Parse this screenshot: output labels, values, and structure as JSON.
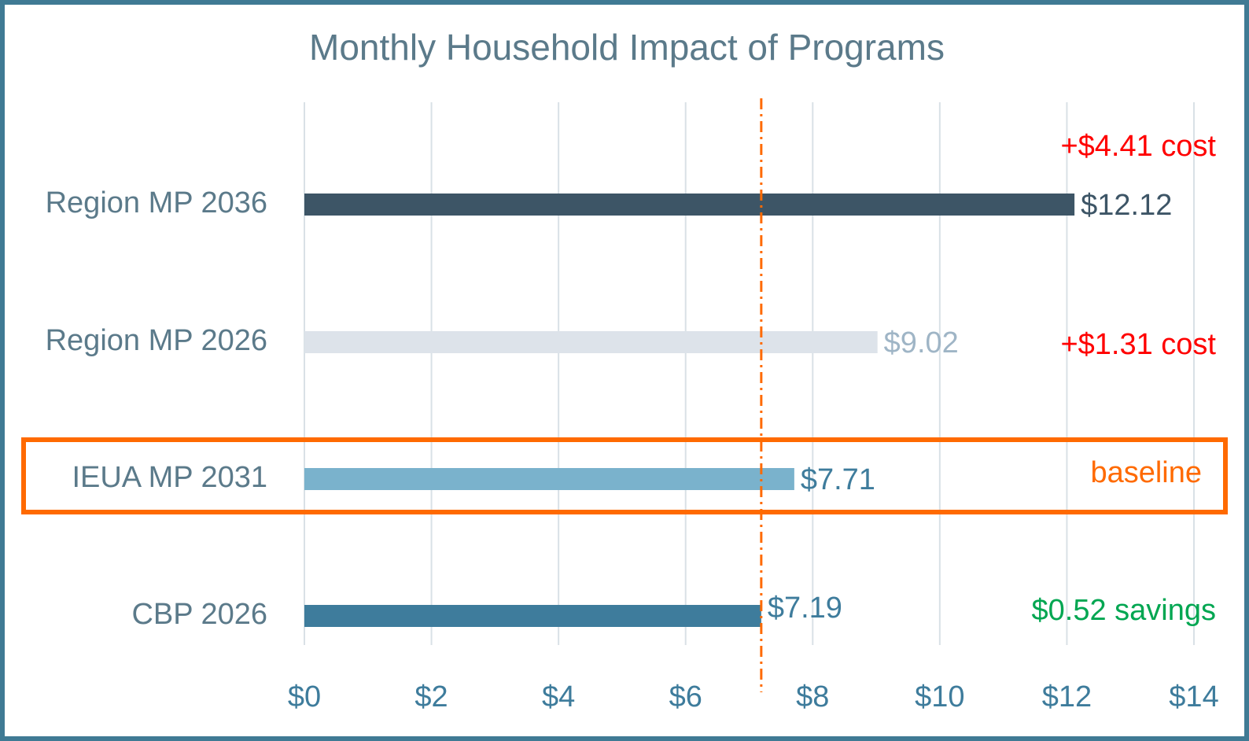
{
  "chart_data": {
    "type": "barh",
    "title": "Monthly Household Impact of Programs",
    "categories": [
      "Region MP 2036",
      "Region MP 2026",
      "IEUA MP 2031",
      "CBP 2026"
    ],
    "values": [
      12.12,
      9.02,
      7.71,
      7.19
    ],
    "value_labels": [
      "$12.12",
      "$9.02",
      "$7.71",
      "$7.19"
    ],
    "colors": [
      "#3d5566",
      "#dde3ea",
      "#7ab2cc",
      "#3e7c9c"
    ],
    "value_label_colors": [
      "#3d5566",
      "#9fb5c6",
      "#3e7c9c",
      "#3e7c9c"
    ],
    "annotations": [
      {
        "text": "+$4.41 cost",
        "color": "#ff0000"
      },
      {
        "text": "+$1.31 cost",
        "color": "#ff0000"
      },
      {
        "text": "baseline",
        "color": "#ff6a00"
      },
      {
        "text": "$0.52 savings",
        "color": "#00a651"
      }
    ],
    "reference_line": 7.19,
    "reference_color": "#ff6a00",
    "highlight": 2,
    "highlight_color": "#ff6a00",
    "xlim": [
      0,
      14
    ],
    "xticks": [
      {
        "value": 0,
        "label": "$0"
      },
      {
        "value": 2,
        "label": "$2"
      },
      {
        "value": 4,
        "label": "$4"
      },
      {
        "value": 6,
        "label": "$6"
      },
      {
        "value": 8,
        "label": "$8"
      },
      {
        "value": 10,
        "label": "$10"
      },
      {
        "value": 12,
        "label": "$12"
      },
      {
        "value": 14,
        "label": "$14"
      }
    ],
    "grid": true
  }
}
